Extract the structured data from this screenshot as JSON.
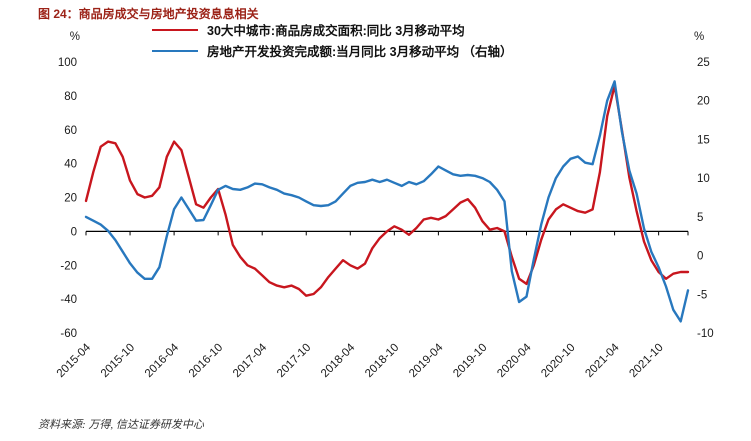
{
  "source": "资料来源: 万得, 信达证券研发中心",
  "chart_data": {
    "type": "line",
    "title": "图 24：商品房成交与房地产投资息息相关",
    "grid": false,
    "legend_position": "top-center",
    "x_start": "2015-04",
    "x_frequency": "monthly",
    "x_labels": [
      "2015-04",
      "2015-10",
      "2016-04",
      "2016-10",
      "2017-04",
      "2017-10",
      "2018-04",
      "2018-10",
      "2019-04",
      "2019-10",
      "2020-04",
      "2020-10",
      "2021-04",
      "2021-10"
    ],
    "x_label_every": 6,
    "left_axis": {
      "unit": "%",
      "min": -60,
      "max": 100,
      "ticks": [
        100,
        80,
        60,
        40,
        20,
        0,
        -20,
        -40,
        -60
      ]
    },
    "right_axis": {
      "unit": "%",
      "min": -10,
      "max": 25,
      "ticks": [
        25,
        20,
        15,
        10,
        5,
        0,
        -5,
        -10
      ]
    },
    "series": [
      {
        "name": "30大中城市:商品房成交面积:同比 3月移动平均",
        "axis": "left",
        "color": "#C8161E",
        "values": [
          18,
          35,
          50,
          53,
          52,
          44,
          30,
          22,
          20,
          21,
          26,
          44,
          53,
          48,
          32,
          16,
          14,
          20,
          25,
          10,
          -8,
          -15,
          -20,
          -22,
          -26,
          -30,
          -32,
          -33,
          -32,
          -34,
          -38,
          -37,
          -33,
          -27,
          -22,
          -17,
          -20,
          -22,
          -19,
          -10,
          -4,
          0,
          3,
          1,
          -2,
          2,
          7,
          8,
          7,
          9,
          13,
          17,
          19,
          14,
          6,
          1,
          2,
          0,
          -15,
          -28,
          -31,
          -20,
          -5,
          7,
          13,
          16,
          14,
          12,
          11,
          13,
          35,
          68,
          86,
          60,
          32,
          12,
          -6,
          -17,
          -24,
          -28,
          -25,
          -24,
          -24
        ]
      },
      {
        "name": "房地产开发投资完成额:当月同比 3月移动平均 （右轴）",
        "axis": "right",
        "color": "#2878BE",
        "values": [
          5,
          4.5,
          4,
          3.2,
          2,
          0.5,
          -1,
          -2.2,
          -3,
          -3,
          -1.5,
          2.5,
          6,
          7.5,
          6,
          4.5,
          4.6,
          6.5,
          8.5,
          9,
          8.6,
          8.5,
          8.8,
          9.3,
          9.2,
          8.8,
          8.5,
          8,
          7.8,
          7.5,
          7,
          6.5,
          6.4,
          6.5,
          7,
          8,
          9,
          9.4,
          9.5,
          9.8,
          9.5,
          9.8,
          9.4,
          9,
          9.5,
          9.2,
          9.6,
          10.5,
          11.5,
          11,
          10.5,
          10.3,
          10.4,
          10.3,
          10,
          9.5,
          8.5,
          7,
          -2,
          -6,
          -5.3,
          -0.5,
          4,
          7.5,
          10,
          11.5,
          12.5,
          12.8,
          12,
          11.8,
          15.5,
          20,
          22.5,
          16,
          11,
          8,
          3.5,
          0.5,
          -1.5,
          -4,
          -7,
          -8.5,
          -4.5
        ]
      }
    ]
  }
}
